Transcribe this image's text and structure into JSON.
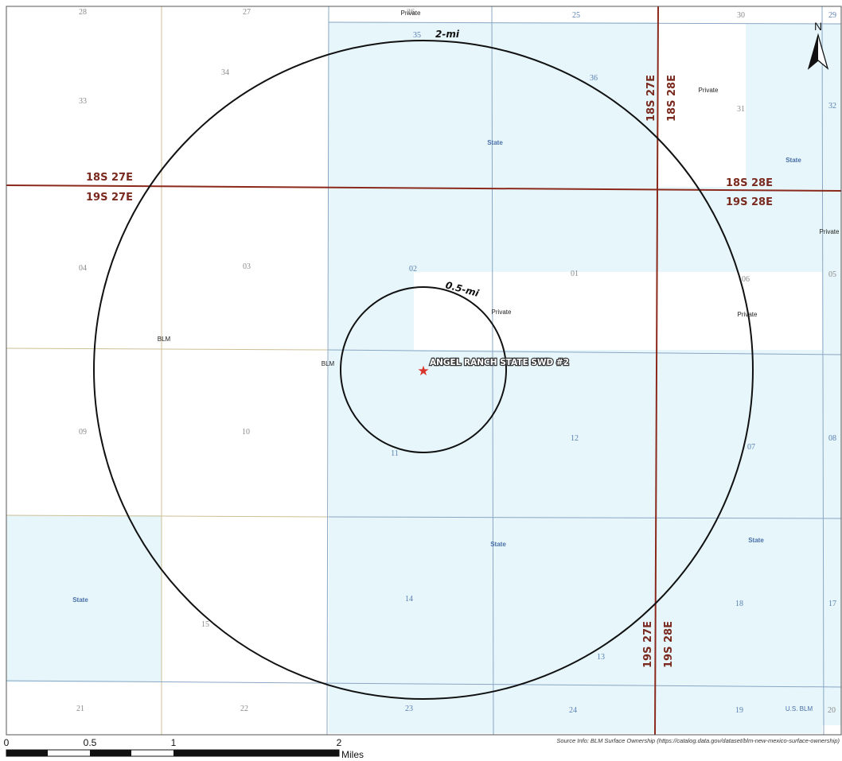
{
  "sections": [
    {
      "id": "s28",
      "label": "28"
    },
    {
      "id": "s27",
      "label": "27"
    },
    {
      "id": "s26",
      "label": "26"
    },
    {
      "id": "s25",
      "label": "25"
    },
    {
      "id": "s30",
      "label": "30"
    },
    {
      "id": "s29",
      "label": "29"
    },
    {
      "id": "s34",
      "label": "34"
    },
    {
      "id": "s35",
      "label": "35"
    },
    {
      "id": "s36",
      "label": "36"
    },
    {
      "id": "s33",
      "label": "33"
    },
    {
      "id": "s31",
      "label": "31"
    },
    {
      "id": "s32",
      "label": "32"
    },
    {
      "id": "s04",
      "label": "04"
    },
    {
      "id": "s03",
      "label": "03"
    },
    {
      "id": "s02",
      "label": "02"
    },
    {
      "id": "s01",
      "label": "01"
    },
    {
      "id": "s06",
      "label": "06"
    },
    {
      "id": "s05",
      "label": "05"
    },
    {
      "id": "s09",
      "label": "09"
    },
    {
      "id": "s10",
      "label": "10"
    },
    {
      "id": "s11",
      "label": "11"
    },
    {
      "id": "s12",
      "label": "12"
    },
    {
      "id": "s07",
      "label": "07"
    },
    {
      "id": "s08",
      "label": "08"
    },
    {
      "id": "s15",
      "label": "15"
    },
    {
      "id": "s14",
      "label": "14"
    },
    {
      "id": "s13",
      "label": "13"
    },
    {
      "id": "s18",
      "label": "18"
    },
    {
      "id": "s17",
      "label": "17"
    },
    {
      "id": "s21",
      "label": "21"
    },
    {
      "id": "s22",
      "label": "22"
    },
    {
      "id": "s23",
      "label": "23"
    },
    {
      "id": "s24",
      "label": "24"
    },
    {
      "id": "s19",
      "label": "19"
    },
    {
      "id": "s20",
      "label": "20"
    }
  ],
  "ownership": [
    {
      "id": "private-top",
      "label": "Private"
    },
    {
      "id": "private-ne",
      "label": "Private"
    },
    {
      "id": "state-n",
      "label": "State"
    },
    {
      "id": "state-ne",
      "label": "State"
    },
    {
      "id": "private-e",
      "label": "Private"
    },
    {
      "id": "private-center",
      "label": "Private"
    },
    {
      "id": "private-e2",
      "label": "Private"
    },
    {
      "id": "blm-w",
      "label": "BLM"
    },
    {
      "id": "blm-center",
      "label": "BLM"
    },
    {
      "id": "state-s",
      "label": "State"
    },
    {
      "id": "state-se",
      "label": "State"
    },
    {
      "id": "state-sw",
      "label": "State"
    },
    {
      "id": "usblm-se",
      "label": "U.S. BLM"
    }
  ],
  "townships": {
    "nw_above": "18S 27E",
    "nw_below": "19S 27E",
    "ne_above": "18S 28E",
    "ne_below": "19S 28E",
    "n_vertical_left": "18S 27E",
    "n_vertical_right": "18S 28E",
    "s_vertical_left": "19S 27E",
    "s_vertical_right": "19S 28E"
  },
  "buffers": {
    "outer_label": "2-mi",
    "inner_label": "0.5-mi"
  },
  "well": {
    "name": "ANGEL RANCH STATE SWD #2",
    "symbol": "★"
  },
  "north_arrow": {
    "label": "N"
  },
  "scale_bar": {
    "ticks": [
      "0",
      "0.5",
      "1",
      "2"
    ],
    "unit": "Miles"
  },
  "source": "Source Info: BLM Surface Ownership (https://catalog.data.gov/dataset/blm-new-mexico-surface-ownership)",
  "colors": {
    "state_fill": "#e6f6fb",
    "township_line": "#8b2a1c",
    "section_line_blue": "#8aa6c4",
    "section_line_tan": "#cdbf94",
    "well_marker": "#d9342b"
  }
}
